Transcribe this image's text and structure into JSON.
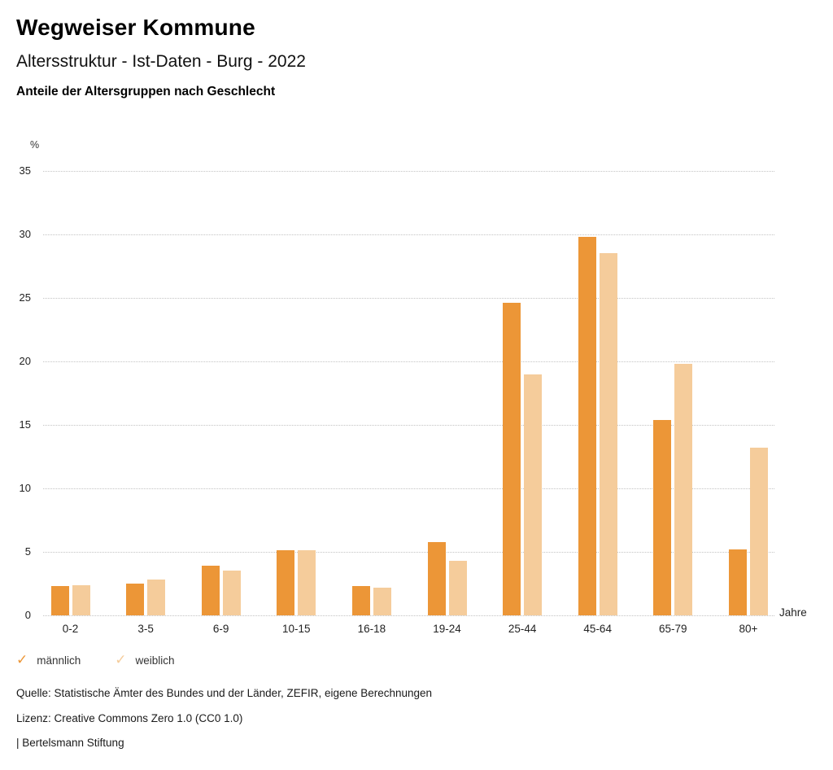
{
  "header": {
    "title": "Wegweiser Kommune",
    "subtitle": "Altersstruktur - Ist-Daten - Burg - 2022",
    "caption": "Anteile der Altersgruppen nach Geschlecht"
  },
  "chart_data": {
    "type": "bar",
    "title": "Anteile der Altersgruppen nach Geschlecht",
    "categories": [
      "0-2",
      "3-5",
      "6-9",
      "10-15",
      "16-18",
      "19-24",
      "25-44",
      "45-64",
      "65-79",
      "80+"
    ],
    "series": [
      {
        "name": "männlich",
        "color": "#EC9637",
        "values": [
          2.3,
          2.5,
          3.9,
          5.1,
          2.3,
          5.8,
          24.6,
          29.8,
          15.4,
          5.2
        ]
      },
      {
        "name": "weiblich",
        "color": "#F5CC9B",
        "values": [
          2.4,
          2.8,
          3.5,
          5.1,
          2.2,
          4.3,
          19.0,
          28.5,
          19.8,
          13.2
        ]
      }
    ],
    "xlabel": "Jahre",
    "ylabel": "%",
    "ylim": [
      0,
      35
    ],
    "yticks": [
      0,
      5,
      10,
      15,
      20,
      25,
      30,
      35
    ],
    "grid": "horizontal-dotted",
    "legend_position": "bottom-left",
    "legend_icon": "check-icon"
  },
  "footer": {
    "source": "Quelle: Statistische Ämter des Bundes und der Länder, ZEFIR, eigene Berechnungen",
    "license": "Lizenz: Creative Commons Zero 1.0 (CC0 1.0)",
    "attribution": "| Bertelsmann Stiftung"
  }
}
